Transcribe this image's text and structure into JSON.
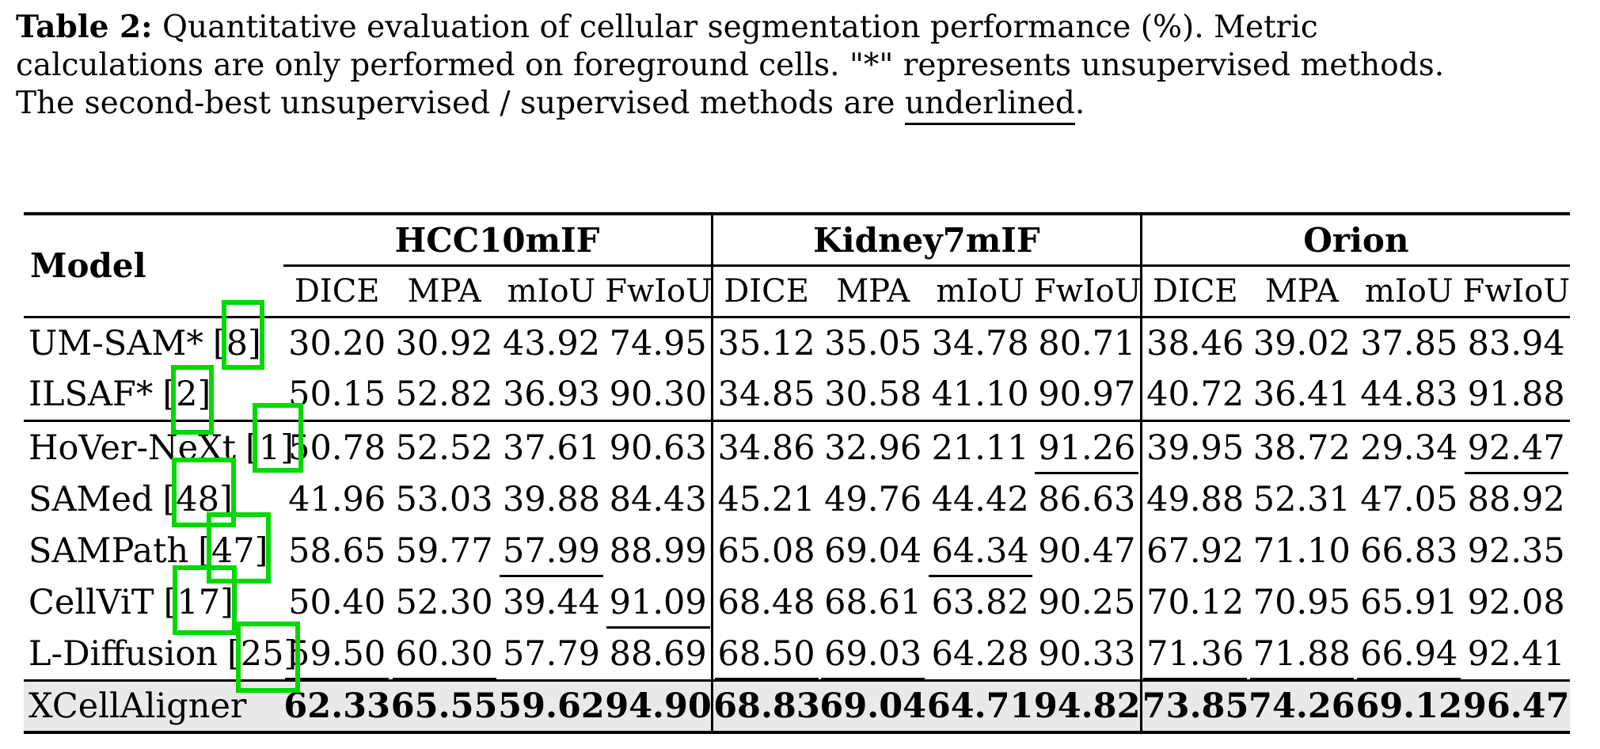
{
  "colors": {
    "citation_box_green": "#00d800",
    "highlight_row_bg": "#e9e9e9",
    "text": "#000000",
    "background": "#ffffff"
  },
  "caption": {
    "lines": [
      {
        "bold": "Table 2:",
        "text": " Quantitative evaluation of cellular segmentation performance (%). Metric"
      },
      {
        "text": "calculations are only performed on foreground cells. \"*\" represents unsupervised methods."
      },
      {
        "pre": "The second-best unsupervised / supervised methods are ",
        "underlined": "underlined",
        "post": "."
      }
    ]
  },
  "table": {
    "model_header": "Model",
    "groups": [
      {
        "name": "HCC10mIF",
        "metrics": [
          "DICE",
          "MPA",
          "mIoU",
          "FwIoU"
        ]
      },
      {
        "name": "Kidney7mIF",
        "metrics": [
          "DICE",
          "MPA",
          "mIoU",
          "FwIoU"
        ]
      },
      {
        "name": "Orion",
        "metrics": [
          "DICE",
          "MPA",
          "mIoU",
          "FwIoU"
        ]
      }
    ],
    "rows": [
      {
        "model": "UM-SAM*",
        "cite": "8",
        "unsupervised": true,
        "values": [
          "30.20",
          "30.92",
          "43.92",
          "74.95",
          "35.12",
          "35.05",
          "34.78",
          "80.71",
          "38.46",
          "39.02",
          "37.85",
          "83.94"
        ],
        "underline": []
      },
      {
        "model": "ILSAF*",
        "cite": "2",
        "unsupervised": true,
        "values": [
          "50.15",
          "52.82",
          "36.93",
          "90.30",
          "34.85",
          "30.58",
          "41.10",
          "90.97",
          "40.72",
          "36.41",
          "44.83",
          "91.88"
        ],
        "underline": []
      },
      {
        "model": "HoVer-NeXt",
        "cite": "1",
        "unsupervised": false,
        "values": [
          "50.78",
          "52.52",
          "37.61",
          "90.63",
          "34.86",
          "32.96",
          "21.11",
          "91.26",
          "39.95",
          "38.72",
          "29.34",
          "92.47"
        ],
        "underline": [
          7,
          11
        ]
      },
      {
        "model": "SAMed",
        "cite": "48",
        "unsupervised": false,
        "values": [
          "41.96",
          "53.03",
          "39.88",
          "84.43",
          "45.21",
          "49.76",
          "44.42",
          "86.63",
          "49.88",
          "52.31",
          "47.05",
          "88.92"
        ],
        "underline": []
      },
      {
        "model": "SAMPath",
        "cite": "47",
        "unsupervised": false,
        "values": [
          "58.65",
          "59.77",
          "57.99",
          "88.99",
          "65.08",
          "69.04",
          "64.34",
          "90.47",
          "67.92",
          "71.10",
          "66.83",
          "92.35"
        ],
        "underline": [
          2,
          6
        ]
      },
      {
        "model": "CellViT",
        "cite": "17",
        "unsupervised": false,
        "values": [
          "50.40",
          "52.30",
          "39.44",
          "91.09",
          "68.48",
          "68.61",
          "63.82",
          "90.25",
          "70.12",
          "70.95",
          "65.91",
          "92.08"
        ],
        "underline": [
          3
        ]
      },
      {
        "model": "L-Diffusion",
        "cite": "25",
        "unsupervised": false,
        "values": [
          "59.50",
          "60.30",
          "57.79",
          "88.69",
          "68.50",
          "69.03",
          "64.28",
          "90.33",
          "71.36",
          "71.88",
          "66.94",
          "92.41"
        ],
        "underline": [
          0,
          1,
          4,
          5,
          8,
          9,
          10
        ]
      }
    ],
    "final_row": {
      "model": "XCellAligner",
      "values": [
        "62.33",
        "65.55",
        "59.62",
        "94.90",
        "68.83",
        "69.04",
        "64.71",
        "94.82",
        "73.85",
        "74.26",
        "69.12",
        "96.47"
      ]
    }
  }
}
